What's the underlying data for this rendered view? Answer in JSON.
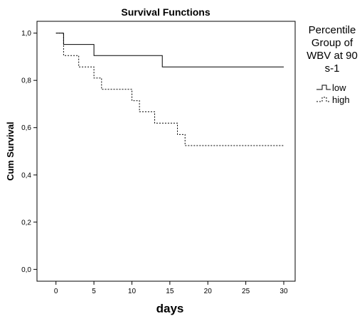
{
  "chart_data": {
    "type": "line",
    "step": true,
    "title": "Survival Functions",
    "xlabel": "days",
    "ylabel": "Cum Survival",
    "xlim": [
      -2.5,
      31.5
    ],
    "ylim": [
      -0.05,
      1.05
    ],
    "x_ticks": [
      0,
      5,
      10,
      15,
      20,
      25,
      30
    ],
    "x_tick_labels": [
      "0",
      "5",
      "10",
      "15",
      "20",
      "25",
      "30"
    ],
    "y_ticks": [
      0.0,
      0.2,
      0.4,
      0.6,
      0.8,
      1.0
    ],
    "y_tick_labels": [
      "0,0",
      "0,2",
      "0,4",
      "0,6",
      "0,8",
      "1,0"
    ],
    "grid": false,
    "legend": {
      "title": "Percentile Group of WBV at 90 s-1",
      "placement": "right"
    },
    "series": [
      {
        "name": "low",
        "line_style": "solid",
        "color": "#000000",
        "x": [
          0,
          1,
          5,
          14,
          30
        ],
        "y": [
          1.0,
          0.952,
          0.905,
          0.857,
          0.857
        ]
      },
      {
        "name": "high",
        "line_style": "dashed",
        "color": "#000000",
        "x": [
          0,
          1,
          3,
          5,
          6,
          10,
          11,
          13,
          16,
          17,
          30
        ],
        "y": [
          1.0,
          0.905,
          0.857,
          0.81,
          0.762,
          0.714,
          0.667,
          0.619,
          0.571,
          0.524,
          0.524
        ]
      }
    ]
  }
}
